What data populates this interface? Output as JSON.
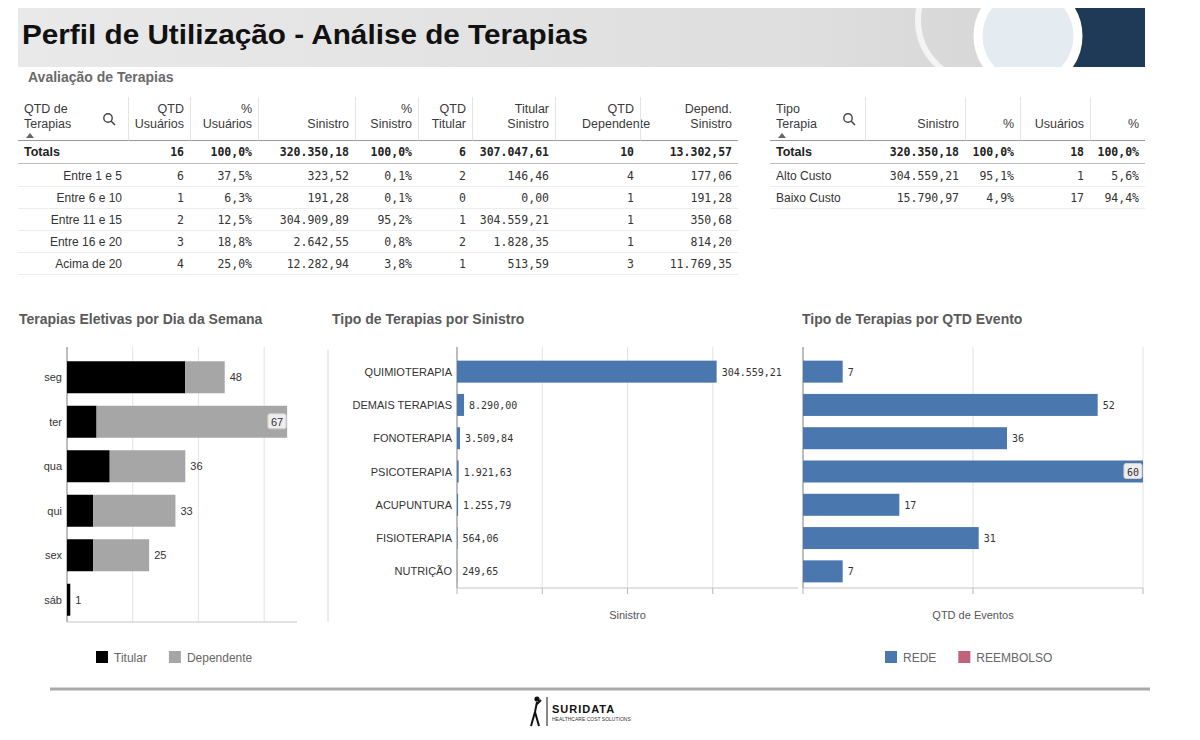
{
  "header": {
    "title": "Perfil de Utilização - Análise de Terapias",
    "subtitle": "Avaliação de Terapias"
  },
  "tables": [
    {
      "columns": [
        "QTD de Terapias",
        "QTD Usuários",
        "% Usuários",
        "Sinistro",
        "% Sinistro",
        "QTD Titular",
        "Titular Sinistro",
        "QTD Dependente",
        "Depend. Sinistro"
      ],
      "totals": [
        "Totals",
        "16",
        "100,0%",
        "320.350,18",
        "100,0%",
        "6",
        "307.047,61",
        "10",
        "13.302,57"
      ],
      "rows": [
        [
          "Entre 1 e 5",
          "6",
          "37,5%",
          "323,52",
          "0,1%",
          "2",
          "146,46",
          "4",
          "177,06"
        ],
        [
          "Entre 6 e 10",
          "1",
          "6,3%",
          "191,28",
          "0,1%",
          "0",
          "0,00",
          "1",
          "191,28"
        ],
        [
          "Entre 11 e 15",
          "2",
          "12,5%",
          "304.909,89",
          "95,2%",
          "1",
          "304.559,21",
          "1",
          "350,68"
        ],
        [
          "Entre 16 e 20",
          "3",
          "18,8%",
          "2.642,55",
          "0,8%",
          "2",
          "1.828,35",
          "1",
          "814,20"
        ],
        [
          "Acima de 20",
          "4",
          "25,0%",
          "12.282,94",
          "3,8%",
          "1",
          "513,59",
          "3",
          "11.769,35"
        ]
      ]
    },
    {
      "columns": [
        "Tipo Terapia",
        "Sinistro",
        "%",
        "Usuários",
        "%"
      ],
      "totals": [
        "Totals",
        "320.350,18",
        "100,0%",
        "18",
        "100,0%"
      ],
      "rows": [
        [
          "Alto Custo",
          "304.559,21",
          "95,1%",
          "1",
          "5,6%"
        ],
        [
          "Baixo Custo",
          "15.790,97",
          "4,9%",
          "17",
          "94,4%"
        ]
      ]
    }
  ],
  "chart_data": [
    {
      "type": "bar",
      "title": "Terapias Eletivas por Dia da Semana",
      "orientation": "horizontal",
      "stacked": true,
      "categories": [
        "seg",
        "ter",
        "qua",
        "qui",
        "sex",
        "sáb"
      ],
      "series": [
        {
          "name": "Titular",
          "color": "#000000",
          "values": [
            36,
            9,
            13,
            8,
            8,
            1
          ]
        },
        {
          "name": "Dependente",
          "color": "#a6a6a6",
          "values": [
            12,
            58,
            23,
            25,
            17,
            0
          ]
        }
      ],
      "totals": [
        48,
        67,
        36,
        33,
        25,
        1
      ],
      "xlim": [
        0,
        70
      ],
      "xticks": [
        0,
        20,
        40,
        60
      ],
      "grid": true,
      "tick_labels": "y",
      "legend": "bottom"
    },
    {
      "type": "bar",
      "title": "Tipo de Terapias por Sinistro",
      "orientation": "horizontal",
      "categories": [
        "QUIMIOTERAPIA",
        "DEMAIS TERAPIAS",
        "FONOTERAPIA",
        "PSICOTERAPIA",
        "ACUPUNTURA",
        "FISIOTERAPIA",
        "NUTRIÇÃO"
      ],
      "values": [
        304559.21,
        8290,
        3509.84,
        1921.63,
        1255.79,
        564.06,
        249.65
      ],
      "value_labels": [
        "304.559,21",
        "8.290,00",
        "3.509,84",
        "1.921,63",
        "1.255,79",
        "564,06",
        "249,65"
      ],
      "color": "#4a77ad",
      "x_label": "Sinistro",
      "xlim": [
        0,
        400000
      ],
      "xticks": [
        0,
        100000,
        200000,
        300000
      ],
      "grid": true,
      "data_labels": true,
      "tick_labels": "y"
    },
    {
      "type": "bar",
      "title": "Tipo de Terapias por QTD Evento",
      "orientation": "horizontal",
      "stacked": true,
      "categories": [
        null,
        null,
        null,
        null,
        null,
        null,
        null
      ],
      "series": [
        {
          "name": "REDE",
          "color": "#4a77ad",
          "values": [
            7,
            52,
            36,
            60,
            17,
            31,
            7
          ]
        },
        {
          "name": "REEMBOLSO",
          "color": "#c0627a",
          "values": [
            0,
            0,
            0,
            0,
            0,
            0,
            0
          ]
        }
      ],
      "x_label": "QTD de Eventos",
      "xlim": [
        0,
        60
      ],
      "xticks": [
        0,
        30,
        60
      ],
      "grid": true,
      "data_labels": true,
      "tick_labels": false,
      "legend": "bottom"
    }
  ],
  "footer": {
    "brand": "SURIDATA",
    "tagline": "HEALTHCARE COST SOLUTIONS"
  }
}
